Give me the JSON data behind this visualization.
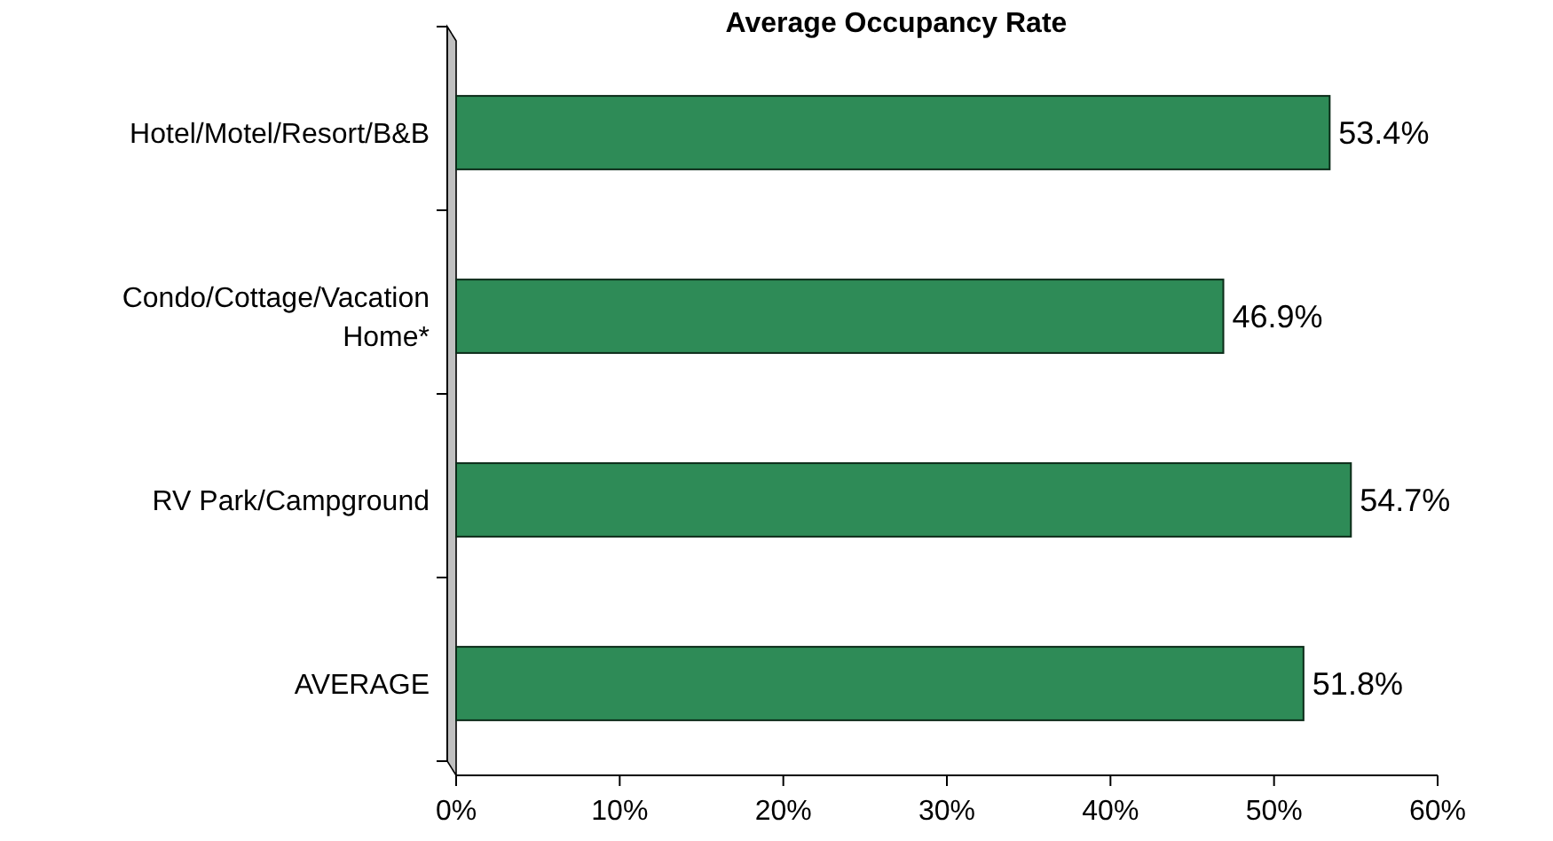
{
  "chart_data": {
    "type": "bar",
    "orientation": "horizontal",
    "title": "Average Occupancy Rate",
    "categories": [
      "Hotel/Motel/Resort/B&B",
      "Condo/Cottage/Vacation Home*",
      "RV Park/Campground",
      "AVERAGE"
    ],
    "values": [
      53.4,
      46.9,
      54.7,
      51.8
    ],
    "value_labels": [
      "53.4%",
      "46.9%",
      "54.7%",
      "51.8%"
    ],
    "color": "#2e8b57",
    "xlim": [
      0,
      60
    ],
    "xticks": [
      {
        "value": 0,
        "label": "0%"
      },
      {
        "value": 10,
        "label": "10%"
      },
      {
        "value": 20,
        "label": "20%"
      },
      {
        "value": 30,
        "label": "30%"
      },
      {
        "value": 40,
        "label": "40%"
      },
      {
        "value": 50,
        "label": "50%"
      },
      {
        "value": 60,
        "label": "60%"
      }
    ]
  }
}
